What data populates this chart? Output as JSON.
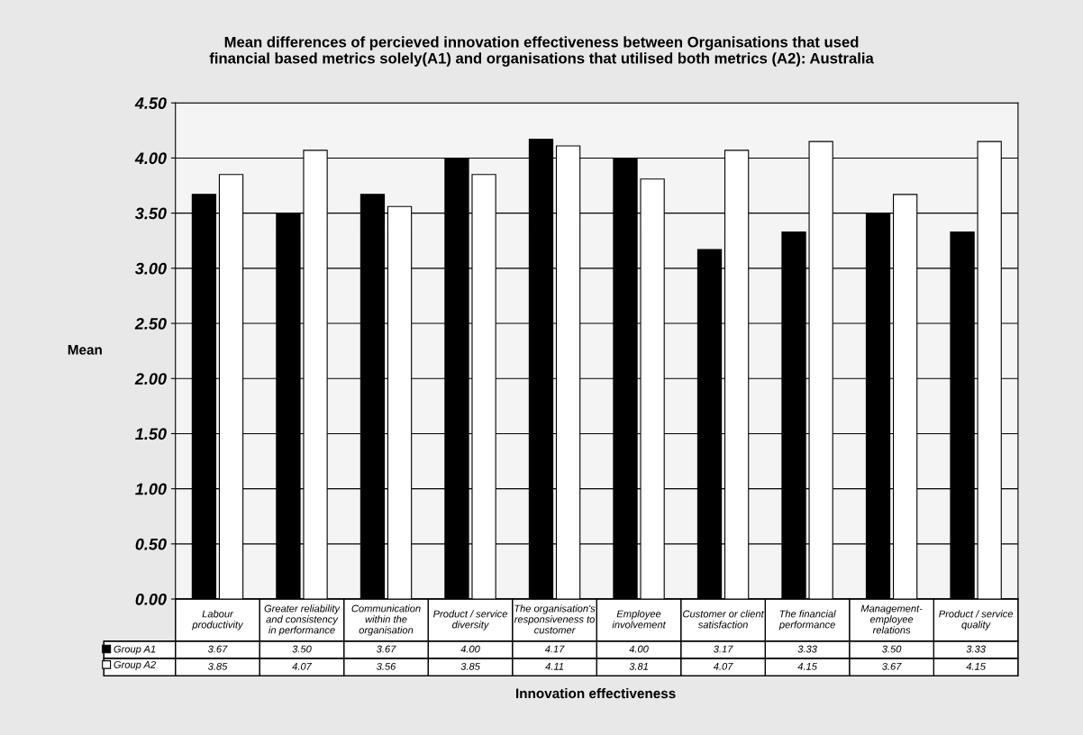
{
  "chart_data": {
    "type": "bar",
    "title": "Mean differences of percieved innovation effectiveness between Organisations that used\nfinancial based metrics solely(A1) and organisations that utilised both metrics (A2): Australia",
    "xlabel": "Innovation effectiveness",
    "ylabel": "Mean",
    "categories": [
      "Labour\nproductivity",
      "Greater reliability\nand consistency\nin performance",
      "Communication\nwithin the\norganisation",
      "Product / service\ndiversity",
      "The organisation's\nresponsiveness to\ncustomer",
      "Employee\ninvolvement",
      "Customer or client\nsatisfaction",
      "The financial\nperformance",
      "Management-\nemployee\nrelations",
      "Product / service\nquality"
    ],
    "series": [
      {
        "name": "Group A1",
        "color": "#000000",
        "values": [
          3.67,
          3.5,
          3.67,
          4.0,
          4.17,
          4.0,
          3.17,
          3.33,
          3.5,
          3.33
        ],
        "value_labels": [
          "3.67",
          "3.50",
          "3.67",
          "4.00",
          "4.17",
          "4.00",
          "3.17",
          "3.33",
          "3.50",
          "3.33"
        ]
      },
      {
        "name": "Group A2",
        "color": "#ffffff",
        "values": [
          3.85,
          4.07,
          3.56,
          3.85,
          4.11,
          3.81,
          4.07,
          4.15,
          3.67,
          4.15
        ],
        "value_labels": [
          "3.85",
          "4.07",
          "3.56",
          "3.85",
          "4.11",
          "3.81",
          "4.07",
          "4.15",
          "3.67",
          "4.15"
        ]
      }
    ],
    "ylim": [
      0,
      4.5
    ],
    "yticks": [
      {
        "value": 0,
        "label": "0.00"
      },
      {
        "value": 0.5,
        "label": "0.50"
      },
      {
        "value": 1,
        "label": "1.00"
      },
      {
        "value": 1.5,
        "label": "1.50"
      },
      {
        "value": 2,
        "label": "2.00"
      },
      {
        "value": 2.5,
        "label": "2.50"
      },
      {
        "value": 3,
        "label": "3.00"
      },
      {
        "value": 3.5,
        "label": "3.50"
      },
      {
        "value": 4,
        "label": "4.00"
      },
      {
        "value": 4.5,
        "label": "4.50"
      }
    ],
    "grid": "y",
    "legend": "bottom left"
  }
}
